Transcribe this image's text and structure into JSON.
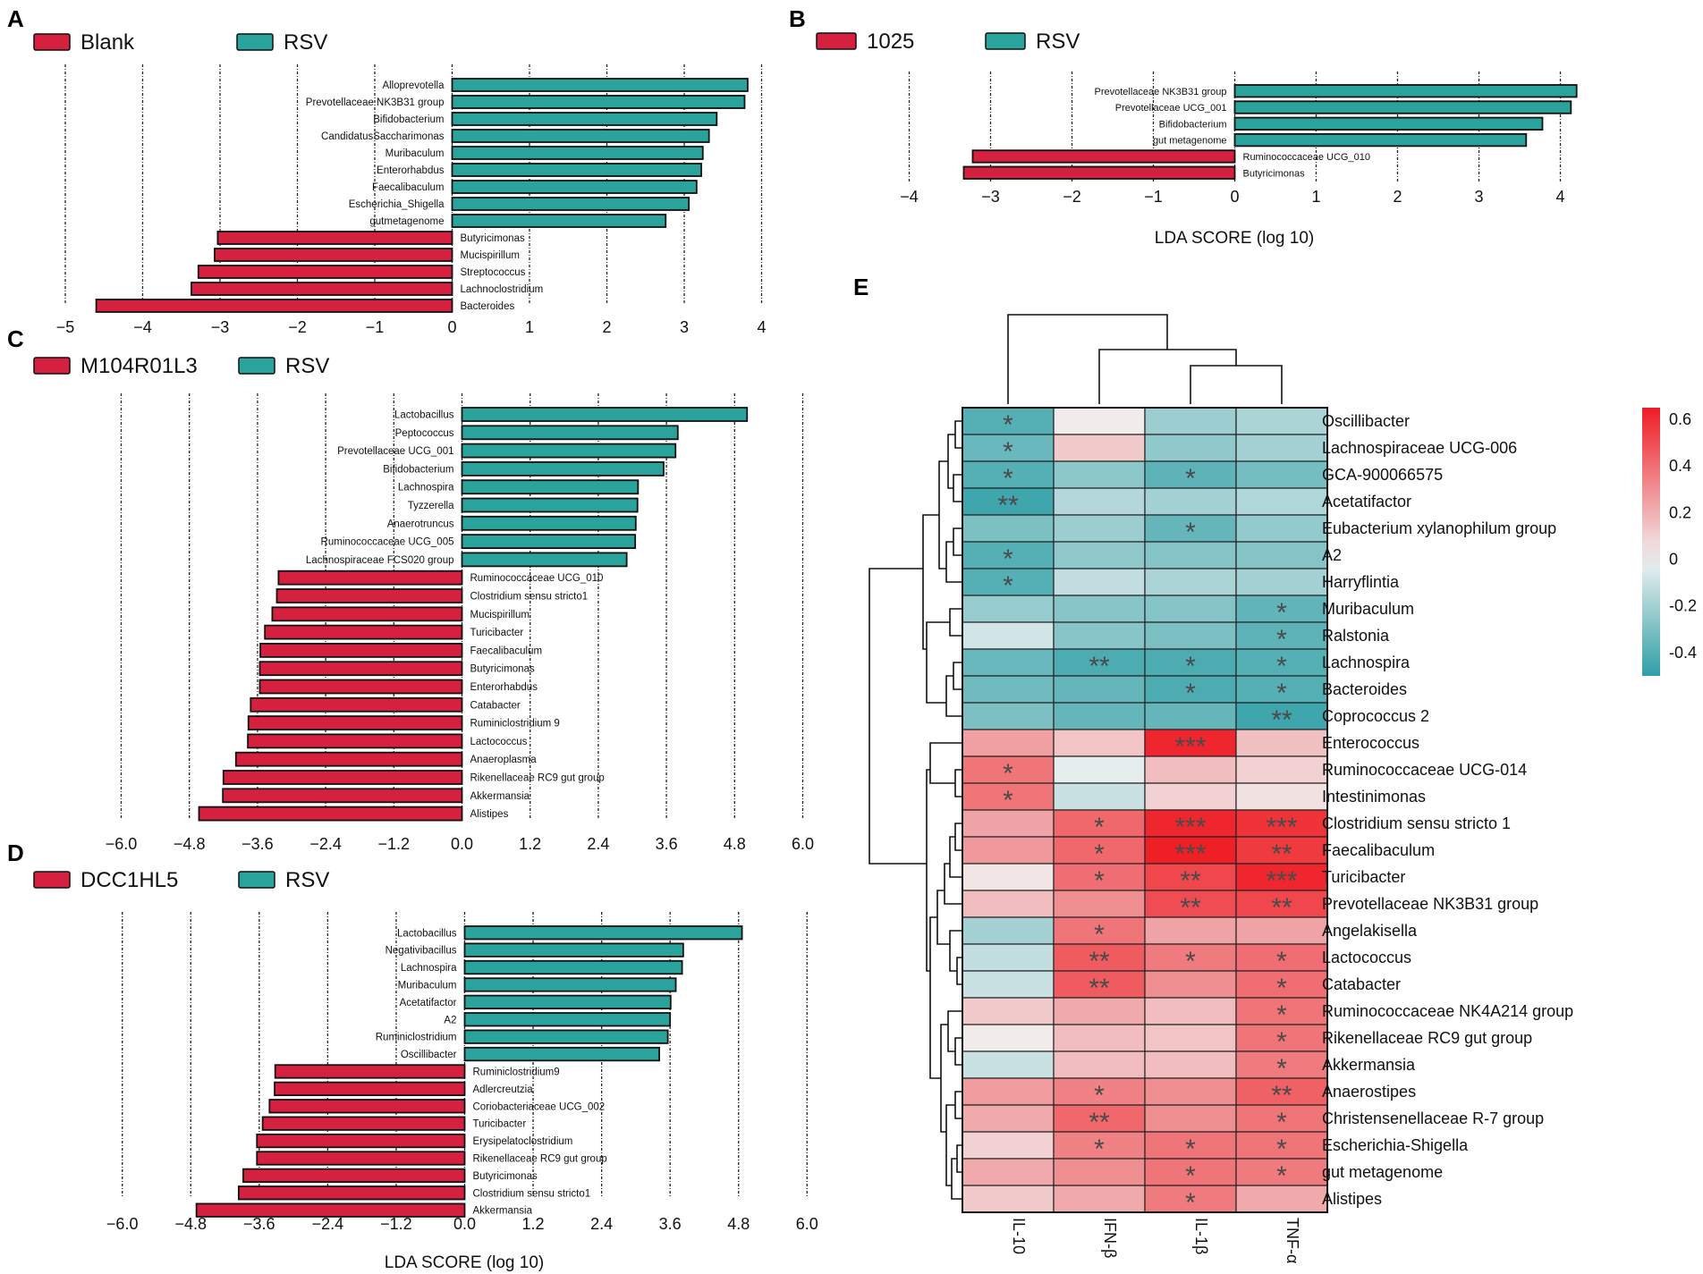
{
  "colors": {
    "control": "#d5213f",
    "rsv": "#2aa39c",
    "stroke": "#111111",
    "heat_pos": "#ef1c23",
    "heat_mid": "#f1f2f2",
    "heat_neg": "#2e9fa6"
  },
  "chart_data": [
    {
      "panel": "A",
      "type": "bar",
      "orientation": "horizontal",
      "legend": [
        "Blank",
        "RSV"
      ],
      "xlim": [
        -5,
        4
      ],
      "ticks": [
        "−5",
        "−4",
        "−3",
        "−2",
        "−1",
        "0",
        "1",
        "2",
        "3",
        "4"
      ],
      "tick_values": [
        -5,
        -4,
        -3,
        -2,
        -1,
        0,
        1,
        2,
        3,
        4
      ],
      "xlabel": "",
      "bars": [
        {
          "label": "Alloprevotella",
          "value": 3.82
        },
        {
          "label": "Prevotellaceae NK3B31 group",
          "value": 3.78
        },
        {
          "label": "Bifidobacterium",
          "value": 3.42
        },
        {
          "label": "CandidatusSaccharimonas",
          "value": 3.32
        },
        {
          "label": "Muribaculum",
          "value": 3.24
        },
        {
          "label": "Enterorhabdus",
          "value": 3.22
        },
        {
          "label": "Faecalibaculum",
          "value": 3.16
        },
        {
          "label": "Escherichia_Shigella",
          "value": 3.06
        },
        {
          "label": "gutmetagenome",
          "value": 2.76
        },
        {
          "label": "Butyricimonas",
          "value": -3.03
        },
        {
          "label": "Mucispirillum",
          "value": -3.07
        },
        {
          "label": "Streptococcus",
          "value": -3.28
        },
        {
          "label": "Lachnoclostridium",
          "value": -3.37
        },
        {
          "label": "Bacteroides",
          "value": -4.6
        }
      ]
    },
    {
      "panel": "B",
      "type": "bar",
      "orientation": "horizontal",
      "legend": [
        "1025",
        "RSV"
      ],
      "xlim": [
        -4,
        4
      ],
      "ticks": [
        "−4",
        "−3",
        "−2",
        "−1",
        "0",
        "1",
        "2",
        "3",
        "4"
      ],
      "tick_values": [
        -4,
        -3,
        -2,
        -1,
        0,
        1,
        2,
        3,
        4
      ],
      "xlabel": "LDA SCORE (log 10)",
      "bars": [
        {
          "label": "Prevotellaceae NK3B31 group",
          "value": 4.2
        },
        {
          "label": "Prevotellaceae UCG_001",
          "value": 4.13
        },
        {
          "label": "Bifidobacterium",
          "value": 3.78
        },
        {
          "label": "gut metagenome",
          "value": 3.58
        },
        {
          "label": "Ruminococcaceae UCG_010",
          "value": -3.22
        },
        {
          "label": "Butyricimonas",
          "value": -3.33
        }
      ]
    },
    {
      "panel": "C",
      "type": "bar",
      "orientation": "horizontal",
      "legend": [
        "M104R01L3",
        "RSV"
      ],
      "xlim": [
        -6,
        6
      ],
      "ticks": [
        "−6.0",
        "−4.8",
        "−3.6",
        "−2.4",
        "−1.2",
        "0.0",
        "1.2",
        "2.4",
        "3.6",
        "4.8",
        "6.0"
      ],
      "tick_values": [
        -6,
        -4.8,
        -3.6,
        -2.4,
        -1.2,
        0,
        1.2,
        2.4,
        3.6,
        4.8,
        6
      ],
      "xlabel": "",
      "bars": [
        {
          "label": "Lactobacillus",
          "value": 5.02
        },
        {
          "label": "Peptococcus",
          "value": 3.8
        },
        {
          "label": "Prevotellaceae UCG_001",
          "value": 3.76
        },
        {
          "label": "Bifidobacterium",
          "value": 3.55
        },
        {
          "label": "Lachnospira",
          "value": 3.1
        },
        {
          "label": "Tyzzerella",
          "value": 3.09
        },
        {
          "label": "Anaerotruncus",
          "value": 3.06
        },
        {
          "label": "Ruminococcaceae UCG_005",
          "value": 3.05
        },
        {
          "label": "Lachnospiraceae FCS020 group",
          "value": 2.9
        },
        {
          "label": "Ruminococcaceae UCG_010",
          "value": -3.23
        },
        {
          "label": "Clostridium sensu stricto1",
          "value": -3.26
        },
        {
          "label": "Mucispirillum",
          "value": -3.34
        },
        {
          "label": "Turicibacter",
          "value": -3.47
        },
        {
          "label": "Faecalibaculum",
          "value": -3.55
        },
        {
          "label": "Butyricimonas",
          "value": -3.56
        },
        {
          "label": "Enterorhabdus",
          "value": -3.56
        },
        {
          "label": "Catabacter",
          "value": -3.72
        },
        {
          "label": "Ruminiclostridium 9",
          "value": -3.76
        },
        {
          "label": "Lactococcus",
          "value": -3.77
        },
        {
          "label": "Anaeroplasma",
          "value": -3.98
        },
        {
          "label": "Rikenellaceae RC9 gut group",
          "value": -4.2
        },
        {
          "label": "Akkermansia",
          "value": -4.21
        },
        {
          "label": "Alistipes",
          "value": -4.63
        }
      ]
    },
    {
      "panel": "D",
      "type": "bar",
      "orientation": "horizontal",
      "legend": [
        "DCC1HL5",
        "RSV"
      ],
      "xlim": [
        -6,
        6
      ],
      "ticks": [
        "−6.0",
        "−4.8",
        "−3.6",
        "−2.4",
        "−1.2",
        "0.0",
        "1.2",
        "2.4",
        "3.6",
        "4.8",
        "6.0"
      ],
      "tick_values": [
        -6,
        -4.8,
        -3.6,
        -2.4,
        -1.2,
        0,
        1.2,
        2.4,
        3.6,
        4.8,
        6
      ],
      "xlabel": "LDA SCORE (log 10)",
      "bars": [
        {
          "label": "Lactobacillus",
          "value": 4.86
        },
        {
          "label": "Negativibacillus",
          "value": 3.83
        },
        {
          "label": "Lachnospira",
          "value": 3.81
        },
        {
          "label": "Muribaculum",
          "value": 3.7
        },
        {
          "label": "Acetatifactor",
          "value": 3.61
        },
        {
          "label": "A2",
          "value": 3.6
        },
        {
          "label": "Ruminiclostridium",
          "value": 3.56
        },
        {
          "label": "Oscillibacter",
          "value": 3.41
        },
        {
          "label": "Ruminiclostridium9",
          "value": -3.32
        },
        {
          "label": "Adlercreutzia",
          "value": -3.33
        },
        {
          "label": "Coriobacteriaceae UCG_002",
          "value": -3.42
        },
        {
          "label": "Turicibacter",
          "value": -3.54
        },
        {
          "label": "Erysipelatoclostridium",
          "value": -3.64
        },
        {
          "label": "Rikenellaceae RC9 gut group",
          "value": -3.64
        },
        {
          "label": "Butyricimonas",
          "value": -3.88
        },
        {
          "label": "Clostridium sensu stricto1",
          "value": -3.96
        },
        {
          "label": "Akkermansia",
          "value": -4.7
        }
      ]
    },
    {
      "panel": "E",
      "type": "heatmap",
      "columns": [
        "IL-10",
        "IFN-β",
        "IL-1β",
        "TNF-α"
      ],
      "colorbar": {
        "ticks": [
          "0.6",
          "0.4",
          "0.2",
          "0",
          "-0.2",
          "-0.4"
        ],
        "tick_values": [
          0.6,
          0.4,
          0.2,
          0,
          -0.2,
          -0.4
        ],
        "range": [
          -0.5,
          0.65
        ]
      },
      "rows": [
        {
          "name": "Oscillibacter",
          "values": [
            -0.4,
            0.02,
            -0.22,
            -0.18
          ],
          "stars": [
            "*",
            "",
            "",
            ""
          ]
        },
        {
          "name": "Lachnospiraceae UCG-006",
          "values": [
            -0.35,
            0.12,
            -0.25,
            -0.2
          ],
          "stars": [
            "*",
            "",
            "",
            ""
          ]
        },
        {
          "name": "GCA-900066575",
          "values": [
            -0.4,
            -0.26,
            -0.38,
            -0.32
          ],
          "stars": [
            "*",
            "",
            "*",
            ""
          ]
        },
        {
          "name": "Acetatifactor",
          "values": [
            -0.46,
            -0.16,
            -0.2,
            -0.17
          ],
          "stars": [
            "**",
            "",
            "",
            ""
          ]
        },
        {
          "name": "Eubacterium xylanophilum group",
          "values": [
            -0.3,
            -0.22,
            -0.36,
            -0.24
          ],
          "stars": [
            "",
            "",
            "*",
            ""
          ]
        },
        {
          "name": "A2",
          "values": [
            -0.4,
            -0.25,
            -0.28,
            -0.28
          ],
          "stars": [
            "*",
            "",
            "",
            ""
          ]
        },
        {
          "name": "Harryflintia",
          "values": [
            -0.4,
            -0.12,
            -0.18,
            -0.2
          ],
          "stars": [
            "*",
            "",
            "",
            ""
          ]
        },
        {
          "name": "Muribaculum",
          "values": [
            -0.23,
            -0.27,
            -0.28,
            -0.37
          ],
          "stars": [
            "",
            "",
            "",
            "*"
          ]
        },
        {
          "name": "Ralstonia",
          "values": [
            -0.08,
            -0.27,
            -0.3,
            -0.38
          ],
          "stars": [
            "",
            "",
            "",
            "*"
          ]
        },
        {
          "name": "Lachnospira",
          "values": [
            -0.35,
            -0.42,
            -0.42,
            -0.4
          ],
          "stars": [
            "",
            "**",
            "*",
            "*"
          ]
        },
        {
          "name": "Bacteroides",
          "values": [
            -0.33,
            -0.36,
            -0.42,
            -0.4
          ],
          "stars": [
            "",
            "",
            "*",
            "*"
          ]
        },
        {
          "name": "Coprococcus 2",
          "values": [
            -0.3,
            -0.36,
            -0.36,
            -0.46
          ],
          "stars": [
            "",
            "",
            "",
            "**"
          ]
        },
        {
          "name": "Enterococcus",
          "values": [
            0.25,
            0.14,
            0.62,
            0.15
          ],
          "stars": [
            "",
            "",
            "***",
            ""
          ]
        },
        {
          "name": "Ruminococcaceae UCG-014",
          "values": [
            0.38,
            -0.03,
            0.16,
            0.1
          ],
          "stars": [
            "*",
            "",
            "",
            ""
          ]
        },
        {
          "name": "Intestinimonas",
          "values": [
            0.38,
            -0.1,
            0.1,
            0.05
          ],
          "stars": [
            "*",
            "",
            "",
            ""
          ]
        },
        {
          "name": "Clostridium sensu stricto 1",
          "values": [
            0.24,
            0.42,
            0.62,
            0.58
          ],
          "stars": [
            "",
            "*",
            "***",
            "***"
          ]
        },
        {
          "name": "Faecalibaculum",
          "values": [
            0.27,
            0.42,
            0.64,
            0.56
          ],
          "stars": [
            "",
            "*",
            "***",
            "**"
          ]
        },
        {
          "name": "Turicibacter",
          "values": [
            0.04,
            0.4,
            0.52,
            0.62
          ],
          "stars": [
            "",
            "*",
            "**",
            "***"
          ]
        },
        {
          "name": "Prevotellaceae NK3B31 group",
          "values": [
            0.16,
            0.3,
            0.5,
            0.52
          ],
          "stars": [
            "",
            "",
            "**",
            "**"
          ]
        },
        {
          "name": "Angelakisella",
          "values": [
            -0.2,
            0.38,
            0.24,
            0.24
          ],
          "stars": [
            "",
            "*",
            "",
            ""
          ]
        },
        {
          "name": "Lactococcus",
          "values": [
            -0.12,
            0.46,
            0.36,
            0.4
          ],
          "stars": [
            "",
            "**",
            "*",
            "*"
          ]
        },
        {
          "name": "Catabacter",
          "values": [
            -0.1,
            0.46,
            0.3,
            0.4
          ],
          "stars": [
            "",
            "**",
            "",
            "*"
          ]
        },
        {
          "name": "Ruminococcaceae NK4A214 group",
          "values": [
            0.12,
            0.22,
            0.16,
            0.38
          ],
          "stars": [
            "",
            "",
            "",
            "*"
          ]
        },
        {
          "name": "Rikenellaceae RC9 gut group",
          "values": [
            0.02,
            0.16,
            0.14,
            0.38
          ],
          "stars": [
            "",
            "",
            "",
            "*"
          ]
        },
        {
          "name": "Akkermansia",
          "values": [
            -0.1,
            0.16,
            0.16,
            0.36
          ],
          "stars": [
            "",
            "",
            "",
            "*"
          ]
        },
        {
          "name": "Anaerostipes",
          "values": [
            0.26,
            0.34,
            0.3,
            0.44
          ],
          "stars": [
            "",
            "*",
            "",
            "**"
          ]
        },
        {
          "name": "Christensenellaceae R-7 group",
          "values": [
            0.22,
            0.42,
            0.3,
            0.38
          ],
          "stars": [
            "",
            "**",
            "",
            "*"
          ]
        },
        {
          "name": "Escherichia-Shigella",
          "values": [
            0.1,
            0.34,
            0.38,
            0.38
          ],
          "stars": [
            "",
            "*",
            "*",
            "*"
          ]
        },
        {
          "name": "gut metagenome",
          "values": [
            0.22,
            0.3,
            0.38,
            0.36
          ],
          "stars": [
            "",
            "",
            "*",
            "*"
          ]
        },
        {
          "name": "Alistipes",
          "values": [
            0.12,
            0.22,
            0.36,
            0.22
          ],
          "stars": [
            "",
            "",
            "*",
            ""
          ]
        }
      ]
    }
  ]
}
